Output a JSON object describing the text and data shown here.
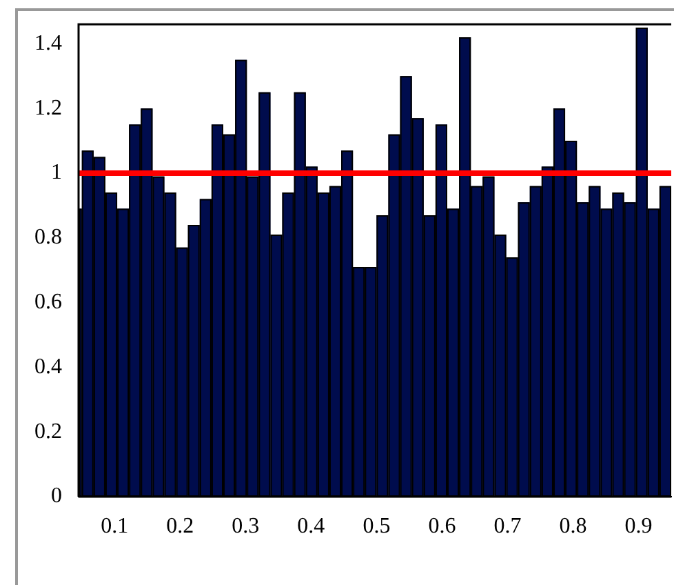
{
  "chart_data": {
    "type": "histogram",
    "bins": [
      0.045,
      0.05,
      0.068,
      0.086,
      0.104,
      0.122,
      0.14,
      0.158,
      0.176,
      0.194,
      0.212,
      0.23,
      0.248,
      0.266,
      0.284,
      0.302,
      0.32,
      0.338,
      0.356,
      0.374,
      0.392,
      0.41,
      0.428,
      0.446,
      0.464,
      0.482,
      0.5,
      0.518,
      0.536,
      0.554,
      0.572,
      0.59,
      0.608,
      0.626,
      0.644,
      0.662,
      0.68,
      0.698,
      0.716,
      0.734,
      0.752,
      0.77,
      0.788,
      0.806,
      0.824,
      0.842,
      0.86,
      0.878,
      0.896,
      0.914,
      0.932,
      0.95
    ],
    "values": [
      0.89,
      1.07,
      1.05,
      0.94,
      0.89,
      1.15,
      1.2,
      0.99,
      0.94,
      0.77,
      0.84,
      0.92,
      1.15,
      1.12,
      1.35,
      0.99,
      1.25,
      0.81,
      0.94,
      1.25,
      1.02,
      0.94,
      0.96,
      1.07,
      0.71,
      0.71,
      0.87,
      1.12,
      1.3,
      1.17,
      0.87,
      1.15,
      0.89,
      1.42,
      0.96,
      0.99,
      0.81,
      0.74,
      0.91,
      0.96,
      1.02,
      1.2,
      1.1,
      0.91,
      0.96,
      0.89,
      0.94,
      0.91,
      1.45,
      0.89,
      0.96
    ],
    "color": "#000c4d",
    "xlim": [
      0.045,
      0.95
    ],
    "xticks": [
      0.1,
      0.2,
      0.3,
      0.4,
      0.5,
      0.6,
      0.7,
      0.8,
      0.9
    ],
    "ylim": [
      0,
      1.46
    ],
    "yticks": [
      0,
      0.2,
      0.4,
      0.6,
      0.8,
      1,
      1.2,
      1.4
    ],
    "ref_lines": [
      {
        "axis": "y",
        "value": 1,
        "color": "#ff0000"
      }
    ],
    "grid": false,
    "legend": false
  }
}
